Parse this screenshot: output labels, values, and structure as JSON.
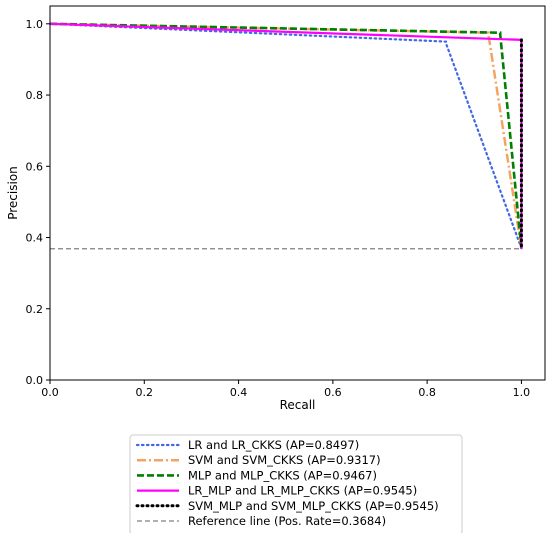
{
  "chart_data": {
    "type": "line",
    "title": "",
    "xlabel": "Recall",
    "ylabel": "Precision",
    "xlim": [
      0.0,
      1.05
    ],
    "ylim": [
      0.0,
      1.05
    ],
    "x_ticks": [
      "0.0",
      "0.2",
      "0.4",
      "0.6",
      "0.8",
      "1.0"
    ],
    "y_ticks": [
      "0.0",
      "0.2",
      "0.4",
      "0.6",
      "0.8",
      "1.0"
    ],
    "grid": false,
    "legend_position": "below-plot",
    "series": [
      {
        "name": "LR and LR_CKKS (AP=0.8497)",
        "color": "#4169e1",
        "style": "dotted",
        "x": [
          0.0,
          0.84,
          0.84,
          1.0,
          1.0
        ],
        "y": [
          1.0,
          0.95,
          0.945,
          0.37,
          0.368
        ]
      },
      {
        "name": "SVM and SVM_CKKS (AP=0.9317)",
        "color": "#f4a460",
        "style": "dashdot",
        "x": [
          0.0,
          0.93,
          0.93,
          1.0,
          1.0
        ],
        "y": [
          1.0,
          0.975,
          0.97,
          0.37,
          0.368
        ]
      },
      {
        "name": "MLP and MLP_CKKS (AP=0.9467)",
        "color": "#008000",
        "style": "dashed",
        "x": [
          0.0,
          0.955,
          0.955,
          1.0,
          1.0
        ],
        "y": [
          1.0,
          0.975,
          0.97,
          0.37,
          0.368
        ]
      },
      {
        "name": "LR_MLP and LR_MLP_CKKS (AP=0.9545)",
        "color": "#ff00ff",
        "style": "solid",
        "x": [
          0.0,
          1.0,
          1.0
        ],
        "y": [
          1.0,
          0.955,
          0.368
        ]
      },
      {
        "name": "SVM_MLP and SVM_MLP_CKKS (AP=0.9545)",
        "color": "#000000",
        "style": "densedot",
        "x": [
          1.0,
          1.0
        ],
        "y": [
          0.955,
          0.368
        ]
      },
      {
        "name": "Reference line (Pos. Rate=0.3684)",
        "color": "#808080",
        "style": "dashed-thin",
        "x": [
          0.0,
          1.0
        ],
        "y": [
          0.3684,
          0.3684
        ]
      }
    ]
  }
}
